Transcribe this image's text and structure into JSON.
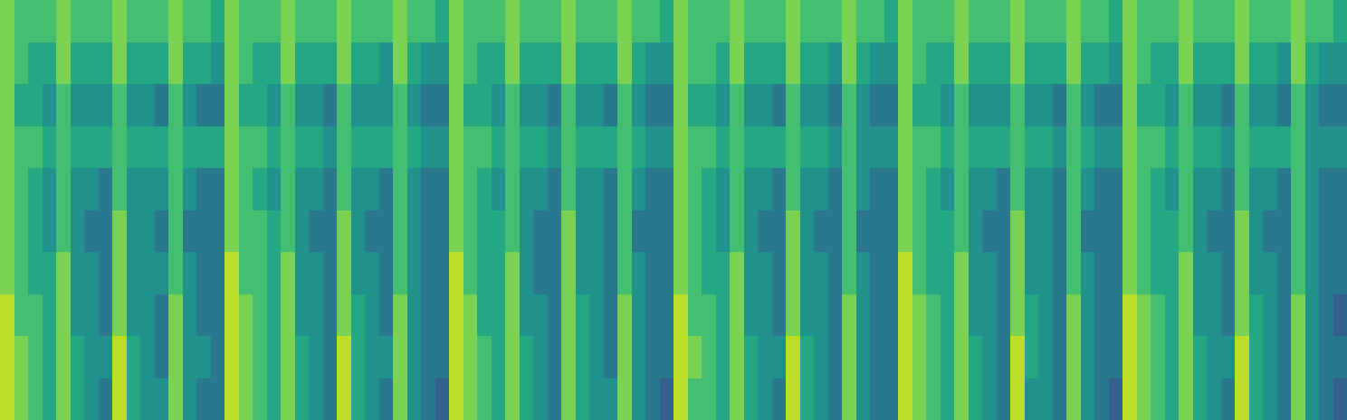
{
  "chart_data": {
    "type": "heatmap",
    "color": "Viridis",
    "zlim": [
      0,
      10
    ],
    "tick_labels": false,
    "grid": false,
    "cells": [
      [
        9,
        8,
        7,
        6,
        8,
        6,
        5,
        4,
        9,
        6,
        5,
        5,
        8,
        5,
        4,
        4,
        9,
        8,
        7,
        6,
        8,
        6,
        5,
        4,
        9,
        6,
        5,
        4,
        8,
        5,
        4,
        3,
        9,
        8,
        7,
        6,
        8,
        6,
        5,
        4,
        8,
        6,
        5,
        5,
        8,
        5,
        4,
        3,
        9,
        7,
        7,
        6,
        8,
        6,
        5,
        4,
        9,
        6,
        5,
        4,
        8,
        5,
        4,
        4,
        9,
        8,
        7,
        6,
        8,
        6,
        5,
        4,
        9,
        5,
        5,
        4,
        8,
        5,
        4,
        3,
        9,
        8,
        7,
        6,
        8,
        6,
        5,
        4,
        9,
        6,
        5,
        4,
        8,
        5,
        4,
        3
      ],
      [
        9,
        8,
        7,
        6,
        8,
        6,
        5,
        5,
        9,
        6,
        5,
        4,
        8,
        5,
        5,
        4,
        9,
        8,
        7,
        6,
        8,
        6,
        5,
        4,
        9,
        6,
        5,
        5,
        8,
        5,
        4,
        4,
        9,
        8,
        7,
        6,
        8,
        6,
        5,
        4,
        8,
        6,
        5,
        4,
        8,
        5,
        4,
        4,
        9,
        8,
        7,
        6,
        8,
        6,
        5,
        5,
        9,
        6,
        5,
        4,
        8,
        5,
        4,
        4,
        9,
        8,
        7,
        6,
        8,
        6,
        5,
        4,
        9,
        6,
        5,
        4,
        8,
        5,
        4,
        4,
        9,
        8,
        7,
        6,
        8,
        6,
        5,
        5,
        9,
        6,
        5,
        4,
        8,
        5,
        4,
        4
      ],
      [
        9,
        7,
        7,
        6,
        8,
        5,
        5,
        4,
        8,
        5,
        5,
        4,
        8,
        5,
        4,
        4,
        9,
        8,
        7,
        6,
        8,
        5,
        5,
        4,
        8,
        6,
        5,
        4,
        8,
        5,
        4,
        4,
        9,
        8,
        6,
        6,
        8,
        5,
        5,
        4,
        8,
        6,
        5,
        4,
        8,
        5,
        4,
        4,
        9,
        7,
        7,
        6,
        8,
        5,
        5,
        4,
        8,
        5,
        5,
        4,
        8,
        5,
        4,
        4,
        9,
        8,
        7,
        6,
        8,
        5,
        5,
        4,
        8,
        6,
        5,
        4,
        8,
        5,
        4,
        4,
        9,
        8,
        7,
        6,
        8,
        5,
        5,
        4,
        8,
        6,
        5,
        4,
        8,
        5,
        4,
        3
      ],
      [
        8,
        7,
        6,
        6,
        8,
        5,
        5,
        4,
        8,
        5,
        5,
        5,
        7,
        5,
        4,
        4,
        9,
        7,
        7,
        6,
        8,
        5,
        5,
        4,
        8,
        5,
        5,
        4,
        7,
        5,
        4,
        4,
        9,
        7,
        6,
        6,
        8,
        5,
        4,
        4,
        8,
        5,
        5,
        4,
        7,
        5,
        4,
        4,
        8,
        7,
        6,
        6,
        8,
        5,
        5,
        4,
        8,
        5,
        5,
        4,
        7,
        5,
        4,
        4,
        9,
        7,
        6,
        6,
        8,
        5,
        5,
        4,
        8,
        5,
        5,
        4,
        7,
        5,
        4,
        4,
        8,
        7,
        6,
        6,
        8,
        5,
        5,
        4,
        8,
        5,
        5,
        4,
        7,
        5,
        4,
        4
      ],
      [
        8,
        7,
        6,
        5,
        7,
        5,
        4,
        4,
        8,
        5,
        5,
        4,
        7,
        4,
        4,
        4,
        8,
        7,
        7,
        6,
        7,
        5,
        4,
        4,
        8,
        5,
        4,
        4,
        7,
        5,
        4,
        4,
        8,
        7,
        6,
        6,
        7,
        5,
        4,
        4,
        8,
        5,
        5,
        4,
        7,
        4,
        4,
        4,
        8,
        7,
        6,
        5,
        7,
        5,
        4,
        4,
        8,
        5,
        4,
        4,
        7,
        4,
        4,
        4,
        8,
        7,
        6,
        6,
        7,
        5,
        4,
        4,
        8,
        5,
        5,
        4,
        7,
        4,
        4,
        4,
        8,
        7,
        6,
        6,
        7,
        5,
        4,
        4,
        8,
        5,
        4,
        4,
        7,
        5,
        4,
        4
      ],
      [
        8,
        7,
        6,
        5,
        7,
        5,
        5,
        4,
        7,
        5,
        5,
        5,
        7,
        5,
        4,
        4,
        8,
        7,
        6,
        5,
        7,
        5,
        5,
        4,
        7,
        5,
        5,
        4,
        7,
        5,
        4,
        4,
        8,
        7,
        6,
        5,
        7,
        5,
        5,
        4,
        7,
        5,
        5,
        4,
        7,
        5,
        4,
        4,
        8,
        7,
        6,
        5,
        7,
        5,
        5,
        4,
        7,
        5,
        5,
        4,
        7,
        5,
        4,
        4,
        8,
        7,
        6,
        5,
        7,
        5,
        5,
        4,
        7,
        5,
        5,
        4,
        7,
        5,
        4,
        4,
        8,
        7,
        6,
        5,
        7,
        5,
        5,
        4,
        7,
        5,
        5,
        4,
        7,
        5,
        4,
        4
      ],
      [
        8,
        7,
        7,
        6,
        7,
        6,
        6,
        6,
        7,
        6,
        6,
        6,
        7,
        6,
        6,
        6,
        8,
        7,
        7,
        6,
        7,
        6,
        6,
        5,
        7,
        6,
        6,
        6,
        7,
        6,
        5,
        5,
        8,
        7,
        7,
        6,
        7,
        6,
        6,
        5,
        7,
        6,
        6,
        6,
        7,
        6,
        5,
        5,
        8,
        7,
        7,
        6,
        7,
        6,
        6,
        6,
        7,
        6,
        6,
        5,
        7,
        5,
        5,
        5,
        8,
        7,
        7,
        6,
        7,
        6,
        6,
        6,
        7,
        6,
        6,
        5,
        7,
        6,
        5,
        5,
        8,
        7,
        7,
        6,
        7,
        6,
        6,
        5,
        7,
        6,
        6,
        6,
        7,
        5,
        5,
        5
      ],
      [
        8,
        6,
        6,
        5,
        7,
        5,
        5,
        5,
        7,
        5,
        5,
        4,
        7,
        5,
        4,
        4,
        8,
        6,
        6,
        5,
        7,
        5,
        5,
        4,
        7,
        5,
        5,
        5,
        7,
        5,
        4,
        4,
        8,
        6,
        6,
        5,
        7,
        5,
        5,
        4,
        7,
        5,
        5,
        4,
        7,
        5,
        4,
        4,
        8,
        6,
        6,
        5,
        7,
        5,
        5,
        4,
        7,
        5,
        5,
        4,
        7,
        5,
        4,
        4,
        8,
        6,
        6,
        5,
        7,
        5,
        5,
        5,
        7,
        5,
        5,
        4,
        7,
        5,
        4,
        4,
        8,
        6,
        6,
        5,
        7,
        5,
        5,
        4,
        7,
        5,
        5,
        4,
        7,
        5,
        4,
        4
      ],
      [
        8,
        7,
        6,
        6,
        8,
        6,
        6,
        6,
        8,
        6,
        6,
        6,
        8,
        6,
        6,
        5,
        8,
        7,
        6,
        6,
        8,
        6,
        6,
        6,
        8,
        6,
        6,
        5,
        8,
        6,
        5,
        5,
        8,
        7,
        6,
        6,
        8,
        6,
        6,
        6,
        8,
        6,
        6,
        6,
        8,
        6,
        5,
        5,
        8,
        7,
        7,
        6,
        8,
        6,
        6,
        6,
        8,
        6,
        6,
        5,
        8,
        6,
        5,
        5,
        8,
        7,
        6,
        6,
        8,
        6,
        6,
        6,
        8,
        6,
        6,
        6,
        8,
        6,
        6,
        5,
        8,
        7,
        6,
        6,
        8,
        6,
        6,
        6,
        8,
        6,
        6,
        5,
        8,
        6,
        5,
        5
      ],
      [
        8,
        7,
        7,
        7,
        8,
        7,
        7,
        7,
        8,
        7,
        7,
        7,
        8,
        7,
        7,
        6,
        8,
        7,
        7,
        7,
        8,
        7,
        7,
        7,
        8,
        7,
        7,
        7,
        8,
        7,
        7,
        6,
        8,
        7,
        7,
        7,
        8,
        7,
        7,
        7,
        8,
        7,
        7,
        7,
        8,
        7,
        7,
        6,
        8,
        7,
        7,
        7,
        8,
        7,
        7,
        7,
        8,
        7,
        7,
        7,
        8,
        7,
        7,
        6,
        8,
        7,
        7,
        7,
        8,
        7,
        7,
        7,
        8,
        7,
        7,
        7,
        8,
        7,
        7,
        6,
        8,
        7,
        7,
        7,
        8,
        7,
        7,
        7,
        8,
        7,
        7,
        7,
        8,
        7,
        7,
        6
      ]
    ]
  }
}
